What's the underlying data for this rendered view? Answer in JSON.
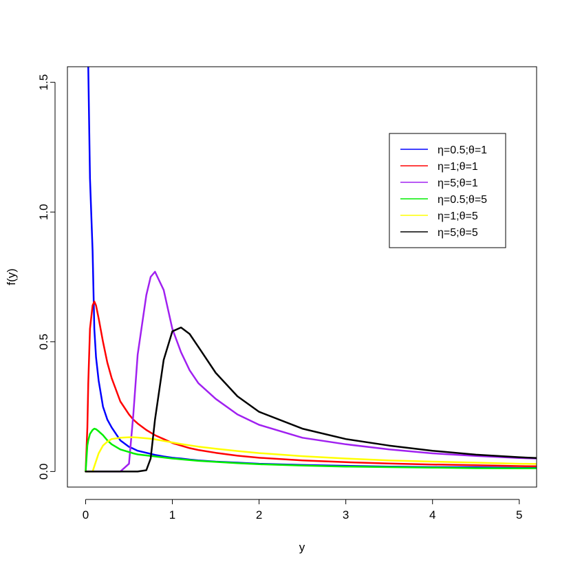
{
  "chart_data": {
    "type": "line",
    "xlabel": "y",
    "ylabel": "f(y)",
    "xlim": [
      -0.21,
      5.2
    ],
    "ylim": [
      -0.06,
      1.56
    ],
    "x_ticks": [
      0,
      1,
      2,
      3,
      4,
      5
    ],
    "x_tick_labels": [
      "0",
      "1",
      "2",
      "3",
      "4",
      "5"
    ],
    "y_ticks": [
      0.0,
      0.5,
      1.0,
      1.5
    ],
    "y_tick_labels": [
      "0.0",
      "0.5",
      "1.0",
      "1.5"
    ],
    "legend_position": "top-right",
    "x": [
      0.0,
      0.02,
      0.03,
      0.05,
      0.08,
      0.1,
      0.12,
      0.15,
      0.2,
      0.25,
      0.3,
      0.4,
      0.5,
      0.55,
      0.6,
      0.7,
      0.75,
      0.8,
      0.9,
      1.0,
      1.1,
      1.2,
      1.3,
      1.5,
      1.75,
      2.0,
      2.5,
      3.0,
      3.5,
      4.0,
      4.5,
      5.0,
      5.2
    ],
    "series": [
      {
        "name": "η=0.5;θ=1",
        "color": "#0000ff",
        "values": [
          null,
          null,
          1.56,
          1.13,
          0.85,
          0.55,
          0.44,
          0.35,
          0.25,
          0.2,
          0.17,
          0.12,
          0.095,
          0.088,
          0.08,
          0.072,
          0.068,
          0.064,
          0.058,
          0.053,
          0.05,
          0.046,
          0.043,
          0.038,
          0.034,
          0.03,
          0.025,
          0.022,
          0.019,
          0.017,
          0.016,
          0.014,
          0.014
        ]
      },
      {
        "name": "η=1;θ=1",
        "color": "#ff0000",
        "values": [
          0.0,
          0.17,
          0.34,
          0.55,
          0.64,
          0.655,
          0.64,
          0.59,
          0.5,
          0.42,
          0.36,
          0.27,
          0.22,
          0.2,
          0.185,
          0.16,
          0.15,
          0.14,
          0.125,
          0.11,
          0.1,
          0.09,
          0.083,
          0.072,
          0.061,
          0.053,
          0.043,
          0.036,
          0.031,
          0.027,
          0.024,
          0.021,
          0.02
        ]
      },
      {
        "name": "η=5;θ=1",
        "color": "#a020f0",
        "values": [
          0.0,
          0.0,
          0.0,
          0.0,
          0.0,
          0.0,
          0.0,
          0.0,
          0.0,
          0.0,
          0.0,
          0.0,
          0.03,
          0.22,
          0.45,
          0.68,
          0.75,
          0.77,
          0.7,
          0.55,
          0.46,
          0.39,
          0.34,
          0.28,
          0.22,
          0.18,
          0.13,
          0.105,
          0.085,
          0.07,
          0.06,
          0.052,
          0.05
        ]
      },
      {
        "name": "η=0.5;θ=5",
        "color": "#00ee00",
        "values": [
          0.0,
          0.1,
          0.12,
          0.145,
          0.16,
          0.165,
          0.163,
          0.155,
          0.14,
          0.12,
          0.105,
          0.085,
          0.075,
          0.07,
          0.066,
          0.062,
          0.06,
          0.058,
          0.054,
          0.05,
          0.047,
          0.044,
          0.041,
          0.037,
          0.032,
          0.028,
          0.023,
          0.019,
          0.017,
          0.015,
          0.013,
          0.012,
          0.012
        ]
      },
      {
        "name": "η=1;θ=5",
        "color": "#ffff00",
        "values": [
          0.0,
          0.0,
          0.0,
          0.0,
          0.0,
          0.02,
          0.04,
          0.07,
          0.1,
          0.115,
          0.125,
          0.13,
          0.132,
          0.132,
          0.131,
          0.128,
          0.126,
          0.124,
          0.118,
          0.112,
          0.106,
          0.101,
          0.096,
          0.088,
          0.079,
          0.071,
          0.059,
          0.05,
          0.043,
          0.038,
          0.034,
          0.03,
          0.029
        ]
      },
      {
        "name": "η=5;θ=5",
        "color": "#000000",
        "values": [
          0.0,
          0.0,
          0.0,
          0.0,
          0.0,
          0.0,
          0.0,
          0.0,
          0.0,
          0.0,
          0.0,
          0.0,
          0.0,
          0.0,
          0.0,
          0.005,
          0.05,
          0.2,
          0.43,
          0.54,
          0.555,
          0.53,
          0.48,
          0.38,
          0.29,
          0.23,
          0.165,
          0.125,
          0.1,
          0.08,
          0.065,
          0.055,
          0.052
        ]
      }
    ]
  }
}
